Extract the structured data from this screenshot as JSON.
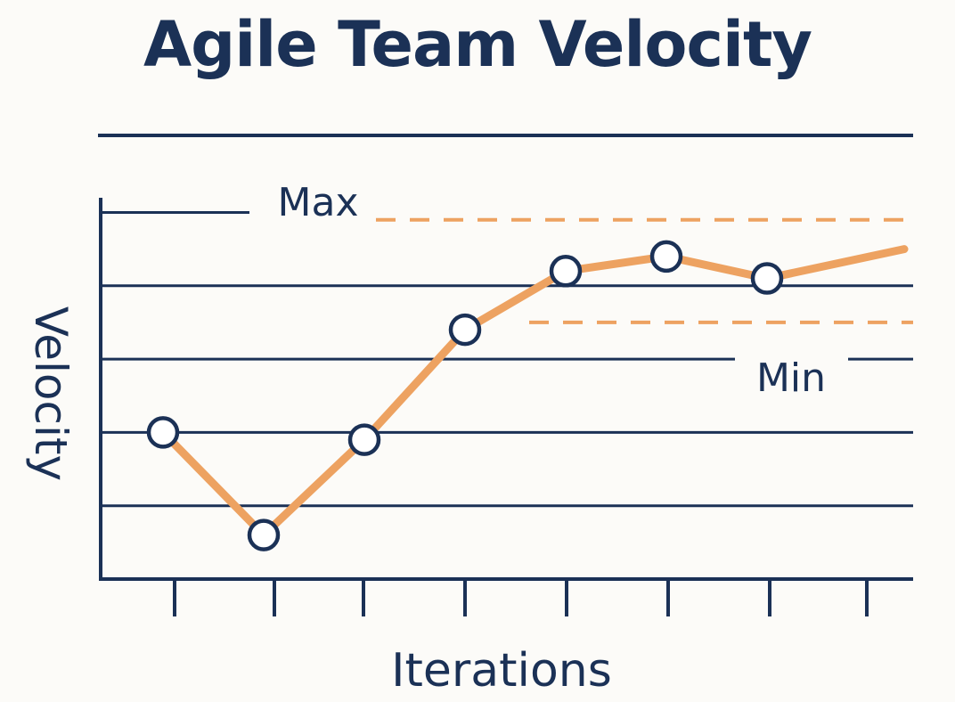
{
  "chart_data": {
    "type": "line",
    "title": "Agile Team Velocity",
    "xlabel": "Iterations",
    "ylabel": "Velocity",
    "grid": true,
    "reference_lines": [
      {
        "label": "Max",
        "value": 4.9
      },
      {
        "label": "Min",
        "value": 3.5
      }
    ],
    "series": [
      {
        "x": [
          1,
          2,
          3,
          4,
          5,
          6,
          7,
          8
        ],
        "values": [
          2.0,
          0.6,
          1.9,
          3.4,
          4.2,
          4.4,
          4.1,
          4.5
        ]
      }
    ],
    "last_value_shown_by_marker": 7,
    "x_ticks": 8,
    "ylim": [
      0,
      5.2
    ],
    "colors": {
      "axis": "#1b3156",
      "line": "#eda261",
      "reference": "#eda261",
      "marker_fill": "#ffffff"
    }
  }
}
